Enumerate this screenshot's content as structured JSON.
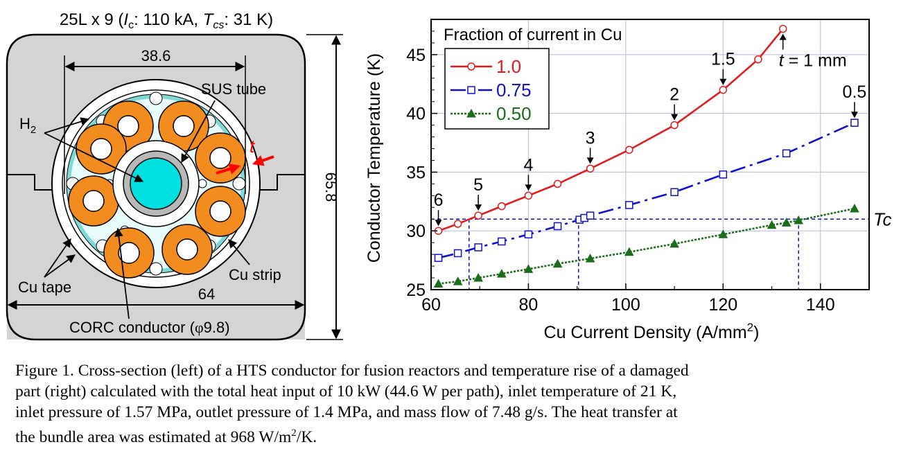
{
  "left_figure": {
    "title_prefix": "25L x 9 (",
    "title_ic_sym": "I",
    "title_ic_sub": "c",
    "title_ic_val": ": 110 kA, ",
    "title_tcs_sym": "T",
    "title_tcs_sub": "cs",
    "title_tcs_val": ": 31 K)",
    "dim_top": "38.6",
    "dim_bottom": "64",
    "dim_right": "65.8",
    "label_sus": "SUS tube",
    "label_h2": "H",
    "label_h2_sub": "2",
    "label_t": "t",
    "label_cu_tape": "Cu tape",
    "label_cu_strip": "Cu strip",
    "label_corc": "CORC conductor (",
    "label_corc_phi": "φ",
    "label_corc_val": "9.8)",
    "colors": {
      "jacket": "#d4d4d4",
      "cable": "#f28c1e",
      "channel": "#00e0e0",
      "arrow": "#ff0000"
    }
  },
  "chart_data": {
    "type": "line",
    "xlabel": "Cu Current Density (A/mm",
    "xlabel_sup": "2",
    "xlabel_end": ")",
    "ylabel": "Conductor Temperature (K)",
    "xlim": [
      60,
      150
    ],
    "ylim": [
      25,
      48
    ],
    "x_ticks": [
      60,
      80,
      100,
      120,
      140
    ],
    "y_ticks": [
      25,
      30,
      35,
      40,
      45
    ],
    "grid": true,
    "legend_title": "Fraction of current in Cu",
    "legend_position": "top-left",
    "series": [
      {
        "name": "1.0",
        "color": "#e31a1c",
        "marker": "circle",
        "dash": "solid",
        "x": [
          61.5,
          65.5,
          69.7,
          74.5,
          80,
          86,
          92.7,
          100.7,
          110,
          120,
          127.2,
          132.3
        ],
        "y": [
          30.0,
          30.6,
          31.3,
          32.1,
          33.0,
          34.0,
          35.3,
          36.9,
          39.0,
          42.0,
          44.6,
          47.2
        ]
      },
      {
        "name": "0.75",
        "color": "#1010d0",
        "marker": "square",
        "dash": "longdash",
        "x": [
          61.5,
          65.5,
          69.7,
          74.5,
          80,
          86,
          90.5,
          91.5,
          92.7,
          100.7,
          110,
          120,
          133,
          147
        ],
        "y": [
          27.7,
          28.1,
          28.6,
          29.1,
          29.7,
          30.4,
          30.95,
          31.1,
          31.3,
          32.2,
          33.3,
          34.8,
          36.6,
          39.2
        ]
      },
      {
        "name": "0.50",
        "color": "#1a6e1a",
        "marker": "triangle",
        "dash": "dotted",
        "x": [
          61.5,
          65.5,
          69.7,
          74.5,
          80,
          86,
          92.7,
          100.7,
          110,
          120,
          130,
          133,
          135.5,
          147
        ],
        "y": [
          25.5,
          25.7,
          26.0,
          26.35,
          26.75,
          27.2,
          27.65,
          28.2,
          28.9,
          29.7,
          30.5,
          30.7,
          30.9,
          31.9
        ]
      }
    ],
    "tc": {
      "label": "Tc",
      "y": 31.0,
      "x_cross": [
        67.8,
        90.3,
        135.5
      ],
      "color": "#1010d0"
    },
    "annotations": [
      {
        "text": "6",
        "x": 61.5,
        "y": 30.0
      },
      {
        "text": "5",
        "x": 69.7,
        "y": 31.3
      },
      {
        "text": "4",
        "x": 80,
        "y": 33.0
      },
      {
        "text": "3",
        "x": 92.7,
        "y": 35.3
      },
      {
        "text": "2",
        "x": 110,
        "y": 39.0
      },
      {
        "text": "1.5",
        "x": 120,
        "y": 42.0
      },
      {
        "text": "0.5",
        "x": 147,
        "y": 39.2
      }
    ],
    "thickness_label": {
      "sym": "t",
      "rest": " = 1 mm",
      "x": 132.3,
      "y": 47.2
    }
  },
  "caption": {
    "line1": "Figure 1. Cross-section (left) of a HTS conductor for fusion reactors and temperature rise of a damaged",
    "line2": "part (right) calculated with the total heat input of 10 kW (44.6 W per path), inlet temperature of 21 K,",
    "line3": "inlet pressure of 1.57 MPa, outlet pressure of 1.4 MPa, and mass flow of 7.48 g/s. The heat transfer at",
    "line4_start": "the bundle area was estimated at 968 W/m",
    "line4_sup": "2",
    "line4_end": "/K."
  }
}
